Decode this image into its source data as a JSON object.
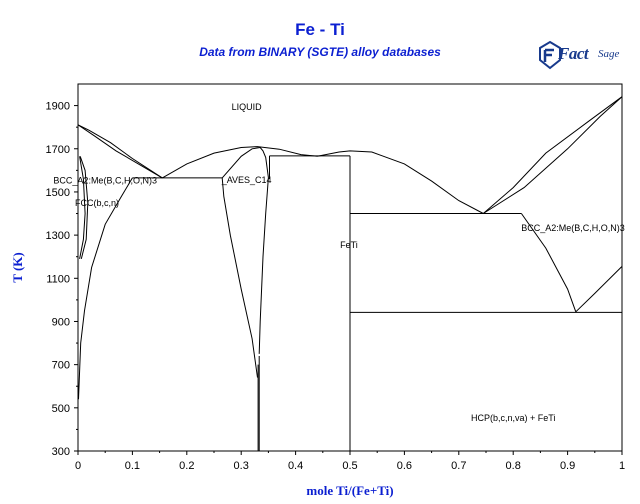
{
  "chart_data": {
    "type": "line",
    "title": "Fe - Ti",
    "subtitle": "Data from BINARY (SGTE) alloy databases",
    "xlabel": "mole Ti/(Fe+Ti)",
    "ylabel": "T (K)",
    "xlim": [
      0,
      1
    ],
    "ylim": [
      300,
      2000
    ],
    "x_ticks": [
      0,
      0.1,
      0.2,
      0.3,
      0.4,
      0.5,
      0.6,
      0.7,
      0.8,
      0.9,
      1
    ],
    "x_tick_labels": [
      "0",
      "0.1",
      "0.2",
      "0.3",
      "0.4",
      "0.5",
      "0.6",
      "0.7",
      "0.8",
      "0.9",
      "1"
    ],
    "y_ticks": [
      300,
      500,
      700,
      900,
      1100,
      1300,
      1500,
      1700,
      1900
    ],
    "y_tick_labels": [
      "300",
      "500",
      "700",
      "900",
      "1100",
      "1300",
      "1500",
      "1700",
      "1900"
    ],
    "grid": false,
    "line_color": "#000000",
    "series": [
      {
        "points": [
          [
            0,
            1811
          ],
          [
            0.02,
            1786
          ],
          [
            0.06,
            1728
          ],
          [
            0.1,
            1655
          ],
          [
            0.155,
            1565
          ]
        ]
      },
      {
        "points": [
          [
            0,
            1811
          ],
          [
            0.03,
            1760
          ],
          [
            0.07,
            1690
          ],
          [
            0.155,
            1565
          ]
        ]
      },
      {
        "points": [
          [
            0.155,
            1565
          ],
          [
            0.2,
            1630
          ],
          [
            0.25,
            1680
          ],
          [
            0.3,
            1706
          ],
          [
            0.33,
            1710
          ],
          [
            0.37,
            1698
          ],
          [
            0.41,
            1673
          ],
          [
            0.44,
            1665
          ]
        ]
      },
      {
        "points": [
          [
            0.44,
            1665
          ],
          [
            0.48,
            1685
          ],
          [
            0.5,
            1690
          ],
          [
            0.54,
            1685
          ],
          [
            0.6,
            1630
          ],
          [
            0.65,
            1550
          ],
          [
            0.7,
            1460
          ],
          [
            0.745,
            1400
          ]
        ]
      },
      {
        "points": [
          [
            0.745,
            1400
          ],
          [
            0.8,
            1520
          ],
          [
            0.86,
            1680
          ],
          [
            0.94,
            1830
          ],
          [
            1,
            1941
          ]
        ]
      },
      {
        "points": [
          [
            0.745,
            1400
          ],
          [
            0.82,
            1520
          ],
          [
            0.9,
            1700
          ],
          [
            0.96,
            1850
          ],
          [
            1,
            1941
          ]
        ]
      },
      {
        "points": [
          [
            0.815,
            1400
          ],
          [
            0.86,
            1240
          ],
          [
            0.9,
            1050
          ],
          [
            0.915,
            945
          ]
        ]
      },
      {
        "points": [
          [
            0.915,
            945
          ],
          [
            0.95,
            1030
          ],
          [
            1,
            1155
          ]
        ]
      },
      {
        "points": [
          [
            0.1,
            1565
          ],
          [
            0.265,
            1565
          ]
        ]
      },
      {
        "points": [
          [
            0.5,
            1400
          ],
          [
            0.815,
            1400
          ]
        ]
      },
      {
        "points": [
          [
            0.5,
            942
          ],
          [
            1,
            942
          ]
        ]
      },
      {
        "points": [
          [
            0.352,
            1667
          ],
          [
            0.5,
            1667
          ]
        ]
      },
      {
        "points": [
          [
            0.265,
            1565
          ],
          [
            0.3,
            1665
          ],
          [
            0.32,
            1700
          ],
          [
            0.335,
            1706
          ]
        ]
      },
      {
        "points": [
          [
            0.335,
            1706
          ],
          [
            0.34,
            1690
          ],
          [
            0.345,
            1660
          ],
          [
            0.35,
            1567
          ]
        ]
      },
      {
        "points": [
          [
            0.265,
            1565
          ],
          [
            0.268,
            1480
          ],
          [
            0.28,
            1300
          ],
          [
            0.3,
            1050
          ],
          [
            0.32,
            820
          ],
          [
            0.33,
            640
          ]
        ]
      },
      {
        "points": [
          [
            0.35,
            1567
          ],
          [
            0.345,
            1400
          ],
          [
            0.34,
            1200
          ],
          [
            0.335,
            900
          ],
          [
            0.333,
            750
          ]
        ]
      },
      {
        "points": [
          [
            0.331,
            300
          ],
          [
            0.331,
            700
          ]
        ]
      },
      {
        "points": [
          [
            0.333,
            300
          ],
          [
            0.333,
            740
          ]
        ]
      },
      {
        "points": [
          [
            0.352,
            1560
          ],
          [
            0.352,
            1667
          ]
        ]
      },
      {
        "points": [
          [
            0.5,
            300
          ],
          [
            0.5,
            1667
          ]
        ]
      },
      {
        "points": [
          [
            0.1,
            1565
          ],
          [
            0.08,
            1480
          ],
          [
            0.05,
            1350
          ],
          [
            0.025,
            1150
          ],
          [
            0.012,
            950
          ],
          [
            0.005,
            800
          ],
          [
            0.001,
            540
          ]
        ]
      },
      {
        "points": [
          [
            0,
            540
          ],
          [
            0,
            1811
          ]
        ]
      },
      {
        "points": [
          [
            0.003,
            1665
          ],
          [
            0.01,
            1560
          ],
          [
            0.013,
            1400
          ],
          [
            0.01,
            1280
          ],
          [
            0.003,
            1190
          ]
        ]
      },
      {
        "points": [
          [
            0.004,
            1665
          ],
          [
            0.013,
            1600
          ],
          [
            0.018,
            1450
          ],
          [
            0.015,
            1280
          ],
          [
            0.006,
            1190
          ]
        ]
      }
    ],
    "annotations": [
      {
        "text": "LIQUID",
        "x": 0.31,
        "y": 1880
      },
      {
        "text": "BCC_A2:Me(B,C,H,O,N)3",
        "x": 0.05,
        "y": 1538
      },
      {
        "text": "FCC(b,c,n)",
        "x": 0.035,
        "y": 1435
      },
      {
        "text": "_AVES_C14",
        "x": 0.31,
        "y": 1542
      },
      {
        "text": "FeTi",
        "x": 0.498,
        "y": 1240
      },
      {
        "text": "BCC_A2:Me(B,C,H,O,N)3",
        "x": 0.91,
        "y": 1318
      },
      {
        "text": "HCP(b,c,n,va) + FeTi",
        "x": 0.8,
        "y": 440
      }
    ]
  },
  "logo": {
    "text_fact": "Fact",
    "text_sage": "Sage"
  }
}
